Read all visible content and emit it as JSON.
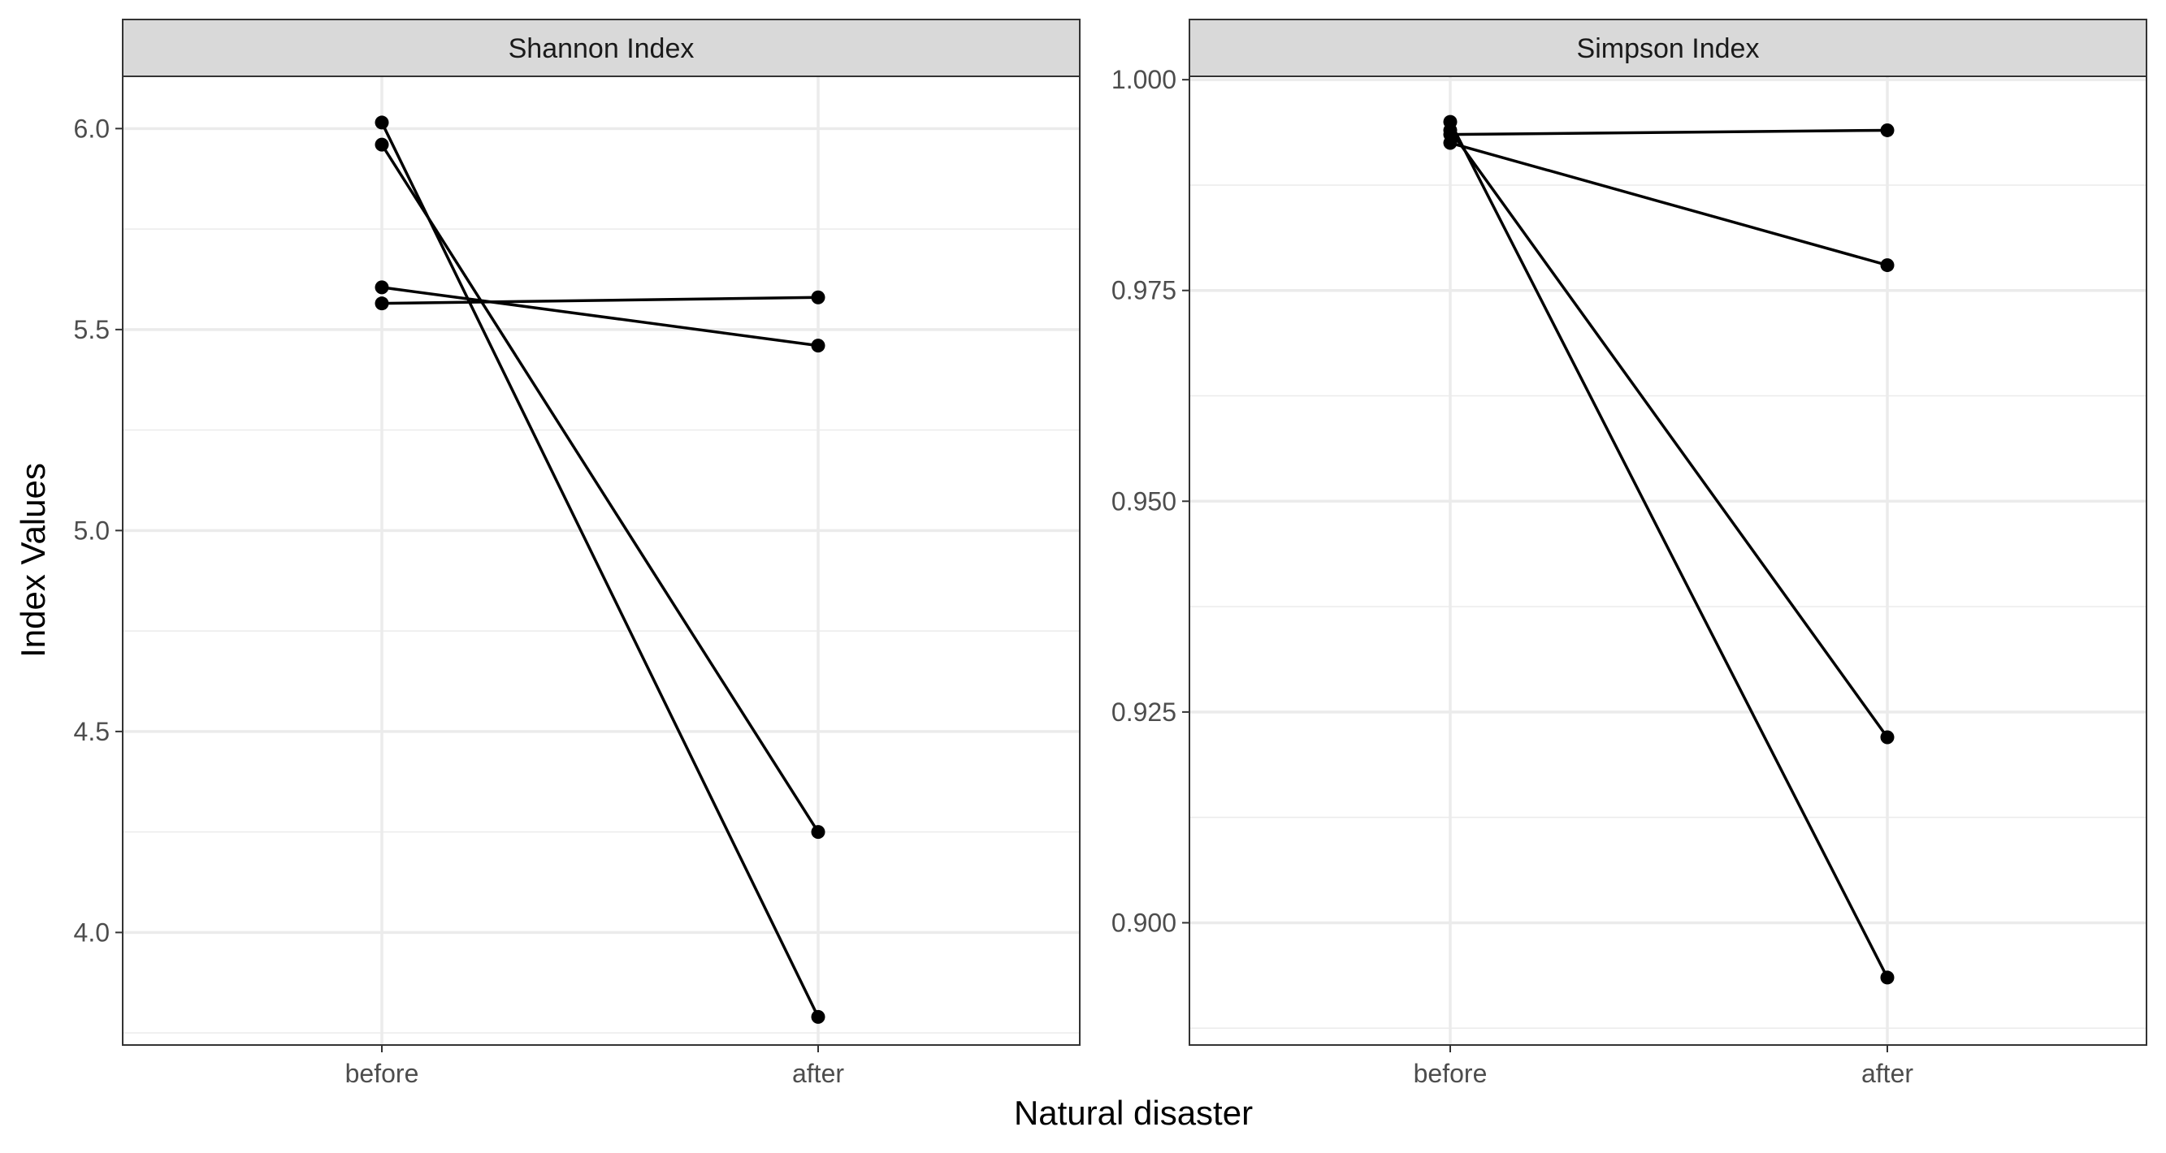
{
  "chart_data": {
    "type": "line",
    "xlabel": "Natural disaster",
    "ylabel": "Index Values",
    "categories": [
      "before",
      "after"
    ],
    "grid": true,
    "legend": "none",
    "colors": {
      "line": "#000000",
      "point": "#000000",
      "strip_fill": "#d9d9d9",
      "border": "#333333",
      "grid": "#ebebeb"
    },
    "facets": [
      {
        "title": "Shannon Index",
        "ylim": [
          3.72,
          6.13
        ],
        "yticks": [
          4.0,
          4.5,
          5.0,
          5.5,
          6.0
        ],
        "ytick_labels": [
          "4.0",
          "4.5",
          "5.0",
          "5.5",
          "6.0"
        ],
        "series": [
          {
            "values": [
              6.015,
              3.79
            ]
          },
          {
            "values": [
              5.96,
              4.25
            ]
          },
          {
            "values": [
              5.605,
              5.46
            ]
          },
          {
            "values": [
              5.565,
              5.58
            ]
          }
        ]
      },
      {
        "title": "Simpson Index",
        "ylim": [
          0.8855,
          1.0004
        ],
        "yticks": [
          0.9,
          0.925,
          0.95,
          0.975,
          1.0
        ],
        "ytick_labels": [
          "0.900",
          "0.925",
          "0.950",
          "0.975",
          "1.000"
        ],
        "series": [
          {
            "values": [
              0.995,
              0.8935
            ]
          },
          {
            "values": [
              0.994,
              0.922
            ]
          },
          {
            "values": [
              0.9925,
              0.978
            ]
          },
          {
            "values": [
              0.9935,
              0.994
            ]
          }
        ]
      }
    ]
  }
}
